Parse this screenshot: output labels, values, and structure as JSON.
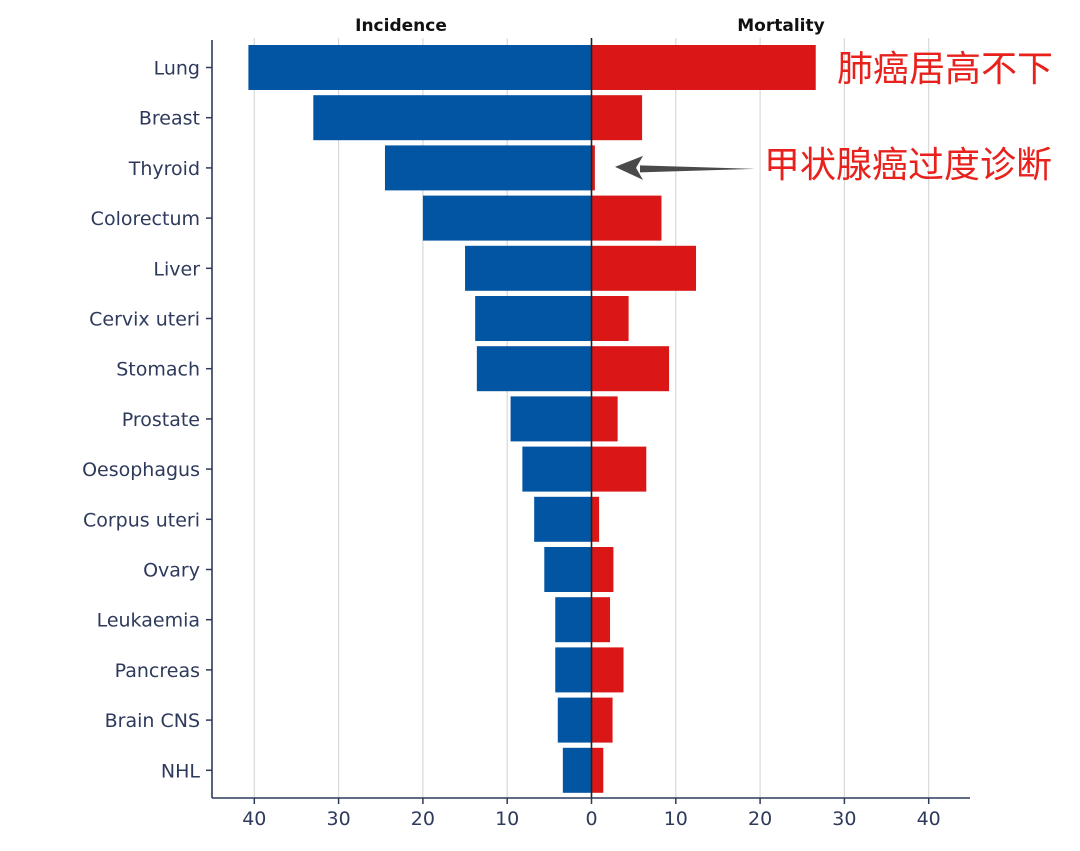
{
  "chart_data": {
    "type": "bar",
    "orientation": "horizontal-diverging",
    "categories": [
      "Lung",
      "Breast",
      "Thyroid",
      "Colorectum",
      "Liver",
      "Cervix uteri",
      "Stomach",
      "Prostate",
      "Oesophagus",
      "Corpus uteri",
      "Ovary",
      "Leukaemia",
      "Pancreas",
      "Brain CNS",
      "NHL"
    ],
    "series": [
      {
        "name": "Incidence",
        "side": "left",
        "color": "#0255a3",
        "values": [
          40.7,
          33.0,
          24.5,
          20.0,
          15.0,
          13.8,
          13.6,
          9.6,
          8.2,
          6.8,
          5.6,
          4.3,
          4.3,
          4.0,
          3.4
        ]
      },
      {
        "name": "Mortality",
        "side": "right",
        "color": "#da1616",
        "values": [
          26.6,
          6.0,
          0.4,
          8.3,
          12.4,
          4.4,
          9.2,
          3.1,
          6.5,
          0.9,
          2.6,
          2.2,
          3.8,
          2.5,
          1.4
        ]
      }
    ],
    "xlim": [
      -45,
      45
    ],
    "xticks": [
      {
        "value": -40,
        "label": "40"
      },
      {
        "value": -30,
        "label": "30"
      },
      {
        "value": -20,
        "label": "20"
      },
      {
        "value": -10,
        "label": "10"
      },
      {
        "value": 0,
        "label": "0"
      },
      {
        "value": 10,
        "label": "10"
      },
      {
        "value": 20,
        "label": "20"
      },
      {
        "value": 30,
        "label": "30"
      },
      {
        "value": 40,
        "label": "40"
      }
    ],
    "grid": "vertical",
    "annotations": [
      {
        "text": "肺癌居高不下",
        "category": "Lung",
        "arrow": false
      },
      {
        "text": "甲状腺癌过度诊断",
        "category": "Thyroid",
        "arrow": true
      }
    ]
  }
}
